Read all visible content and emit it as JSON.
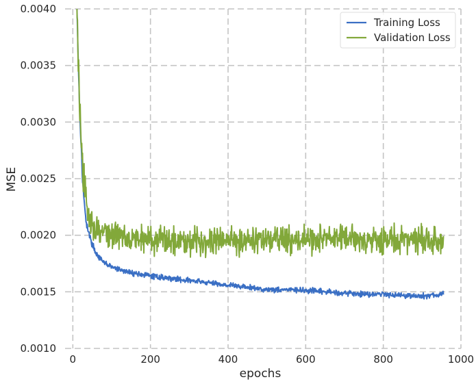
{
  "chart_data": {
    "type": "line",
    "title": "",
    "xlabel": "epochs",
    "ylabel": "MSE",
    "xlim": [
      -20,
      1000
    ],
    "ylim": [
      0.001,
      0.004
    ],
    "xticks": [
      0,
      200,
      400,
      600,
      800,
      1000
    ],
    "yticks": [
      0.001,
      0.0015,
      0.002,
      0.0025,
      0.003,
      0.0035,
      0.004
    ],
    "xtick_labels": [
      "0",
      "200",
      "400",
      "600",
      "800",
      "1000"
    ],
    "ytick_labels": [
      "0.0010",
      "0.0015",
      "0.0020",
      "0.0025",
      "0.0030",
      "0.0035",
      "0.0040"
    ],
    "grid": true,
    "legend_position": "top-right",
    "series": [
      {
        "name": "Training Loss",
        "color": "#3a6fc4",
        "noise": 1.2e-05,
        "x": [
          5,
          10,
          15,
          20,
          25,
          30,
          35,
          40,
          50,
          60,
          75,
          100,
          125,
          150,
          200,
          250,
          300,
          350,
          400,
          450,
          500,
          550,
          600,
          650,
          700,
          750,
          800,
          850,
          900,
          955
        ],
        "y": [
          0.0047,
          0.0041,
          0.0034,
          0.0029,
          0.0025,
          0.00225,
          0.00212,
          0.00203,
          0.00192,
          0.00184,
          0.00177,
          0.00172,
          0.00169,
          0.00167,
          0.00164,
          0.00162,
          0.0016,
          0.00158,
          0.00156,
          0.00154,
          0.00152,
          0.00152,
          0.00151,
          0.0015,
          0.00149,
          0.00148,
          0.00148,
          0.00147,
          0.00146,
          0.00148
        ]
      },
      {
        "name": "Validation Loss",
        "color": "#82a83a",
        "noise": 6e-05,
        "x": [
          8,
          12,
          16,
          20,
          25,
          30,
          35,
          40,
          50,
          60,
          75,
          100,
          125,
          150,
          200,
          250,
          300,
          350,
          400,
          450,
          500,
          550,
          600,
          650,
          700,
          750,
          800,
          850,
          900,
          955
        ],
        "y": [
          0.0045,
          0.0038,
          0.0033,
          0.0029,
          0.0026,
          0.0024,
          0.00225,
          0.00218,
          0.0021,
          0.00206,
          0.00203,
          0.002,
          0.002,
          0.00198,
          0.00196,
          0.00196,
          0.00196,
          0.00195,
          0.00196,
          0.00196,
          0.00196,
          0.00196,
          0.00196,
          0.00197,
          0.00197,
          0.00196,
          0.00196,
          0.00196,
          0.00196,
          0.00193
        ]
      }
    ]
  }
}
